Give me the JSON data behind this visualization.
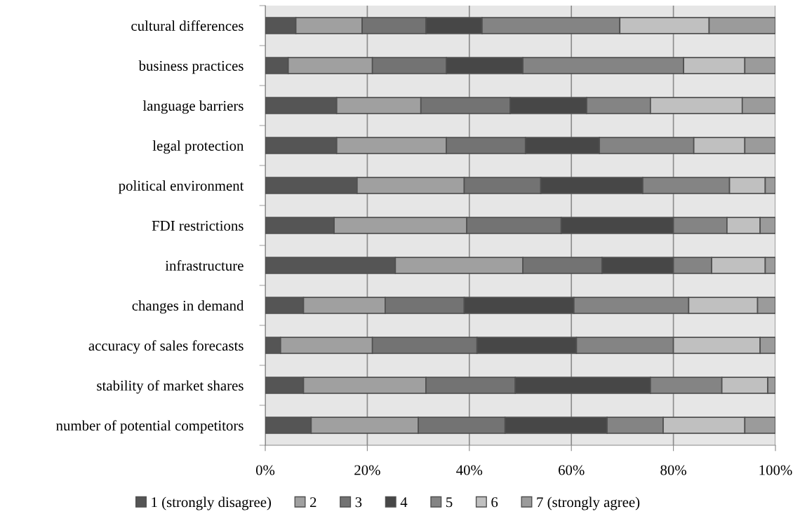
{
  "chart_data": {
    "type": "bar",
    "orientation": "horizontal",
    "stacked": true,
    "categories": [
      "cultural differences",
      "business practices",
      "language barriers",
      "legal protection",
      "political environment",
      "FDI restrictions",
      "infrastructure",
      "changes in demand",
      "accuracy of sales forecasts",
      "stability of market shares",
      "number of potential competitors"
    ],
    "series": [
      {
        "name": "1 (strongly disagree)",
        "color": "#555555",
        "values": [
          6,
          4.5,
          14,
          14,
          18,
          13.5,
          25.5,
          7.5,
          3,
          7.5,
          9
        ]
      },
      {
        "name": "2",
        "color": "#a0a0a0",
        "values": [
          13,
          16.5,
          16.5,
          21.5,
          21,
          26,
          25,
          16,
          18,
          24,
          21
        ]
      },
      {
        "name": "3",
        "color": "#737373",
        "values": [
          12.5,
          14.5,
          17.5,
          15.5,
          15,
          18.5,
          15.5,
          15.5,
          20.5,
          17.5,
          17
        ]
      },
      {
        "name": "4",
        "color": "#474747",
        "values": [
          11,
          15,
          15,
          14.5,
          20,
          22,
          14,
          21.5,
          19.5,
          26.5,
          20
        ]
      },
      {
        "name": "5",
        "color": "#848484",
        "values": [
          27,
          31.5,
          12.5,
          18.5,
          17,
          10.5,
          7.5,
          22.5,
          19,
          14,
          11
        ]
      },
      {
        "name": "6",
        "color": "#c0c0c0",
        "values": [
          17.5,
          12,
          18,
          10,
          7,
          6.5,
          10.5,
          13.5,
          17,
          9,
          16
        ]
      },
      {
        "name": "7 (strongly agree)",
        "color": "#9b9b9b",
        "values": [
          13,
          6,
          6.5,
          6,
          2,
          3,
          2,
          3.5,
          3,
          1.5,
          6
        ]
      }
    ],
    "xlim": [
      0,
      100
    ],
    "xticks": [
      {
        "value": 0,
        "label": "0%"
      },
      {
        "value": 20,
        "label": "20%"
      },
      {
        "value": 40,
        "label": "40%"
      },
      {
        "value": 60,
        "label": "60%"
      },
      {
        "value": 80,
        "label": "80%"
      },
      {
        "value": 100,
        "label": "100%"
      }
    ],
    "grid": "x",
    "legend": "bottom"
  }
}
